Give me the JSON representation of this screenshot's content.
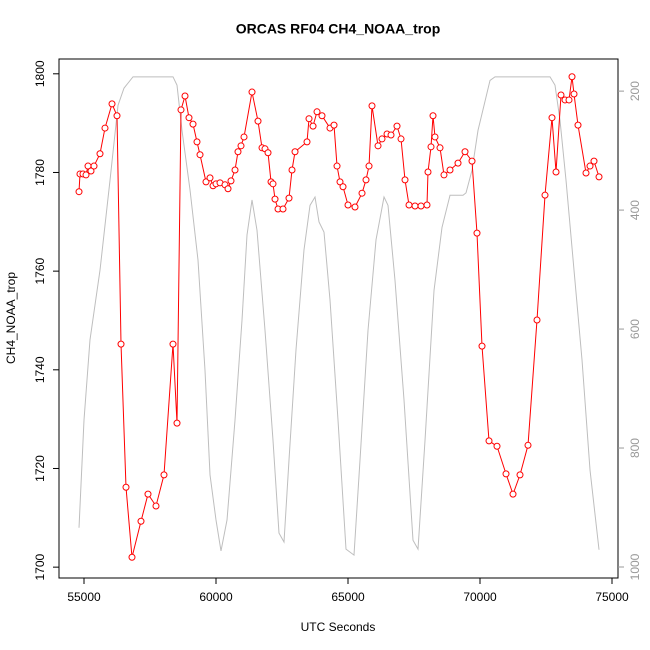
{
  "chart_data": {
    "type": "line",
    "title": "ORCAS RF04 CH4_NOAA_trop",
    "xlabel": "UTC Seconds",
    "ylabel": "CH4_NOAA_trop",
    "xlim": [
      54053,
      75227
    ],
    "xticks": [
      55000,
      60000,
      65000,
      70000,
      75000
    ],
    "ylim": [
      1697.8,
      1803.0
    ],
    "yticks": [
      1700,
      1720,
      1740,
      1760,
      1780,
      1800
    ],
    "y2lim": [
      1018.5,
      146
    ],
    "y2ticks": [
      200,
      400,
      600,
      800,
      1000
    ],
    "series": [
      {
        "color": "#ff0000",
        "markers": true,
        "x": [
          54811,
          54848,
          54962,
          55076,
          55152,
          55265,
          55379,
          55606,
          55795,
          56061,
          56250,
          56402,
          56591,
          56818,
          57159,
          57424,
          57727,
          58030,
          58371,
          58523,
          58674,
          58826,
          58977,
          59129,
          59280,
          59394,
          59621,
          59773,
          59887,
          60000,
          60152,
          60341,
          60455,
          60568,
          60720,
          60833,
          60947,
          61061,
          61364,
          61591,
          61743,
          61856,
          61970,
          62084,
          62159,
          62235,
          62349,
          62538,
          62765,
          62879,
          62993,
          63447,
          63523,
          63675,
          63826,
          64015,
          64318,
          64470,
          64584,
          64697,
          64811,
          65000,
          65265,
          65531,
          65682,
          65796,
          65909,
          66137,
          66288,
          66478,
          66629,
          66856,
          67008,
          67159,
          67311,
          67538,
          67765,
          67992,
          68030,
          68144,
          68220,
          68295,
          68485,
          68636,
          68864,
          69167,
          69432,
          69697,
          69886,
          70076,
          70341,
          70644,
          70985,
          71250,
          71515,
          71818,
          72159,
          72462,
          72727,
          72879,
          73068,
          73220,
          73371,
          73485,
          73561,
          73712,
          74015,
          74167,
          74318,
          74508
        ],
        "values": [
          1776.1,
          1779.7,
          1779.7,
          1779.5,
          1781.3,
          1780.3,
          1781.3,
          1783.8,
          1789.0,
          1793.9,
          1791.5,
          1745.2,
          1716.2,
          1702.0,
          1709.3,
          1714.8,
          1712.4,
          1718.7,
          1745.2,
          1729.2,
          1792.7,
          1795.5,
          1791.1,
          1789.8,
          1786.2,
          1783.6,
          1778.1,
          1778.9,
          1777.3,
          1777.7,
          1777.9,
          1777.5,
          1776.7,
          1778.3,
          1780.5,
          1784.2,
          1785.4,
          1787.2,
          1796.3,
          1790.4,
          1785.0,
          1784.8,
          1784.0,
          1778.1,
          1777.7,
          1774.6,
          1772.6,
          1772.6,
          1774.8,
          1780.5,
          1784.2,
          1786.2,
          1790.9,
          1789.4,
          1792.3,
          1791.5,
          1789.0,
          1789.6,
          1781.3,
          1778.1,
          1777.1,
          1773.4,
          1773.0,
          1775.8,
          1778.5,
          1781.3,
          1793.5,
          1785.4,
          1786.8,
          1787.8,
          1787.6,
          1789.4,
          1786.8,
          1778.5,
          1773.4,
          1773.2,
          1773.2,
          1773.4,
          1780.1,
          1785.2,
          1791.5,
          1787.2,
          1785.0,
          1779.5,
          1780.5,
          1781.9,
          1784.2,
          1782.3,
          1767.7,
          1744.8,
          1725.6,
          1724.5,
          1718.9,
          1714.8,
          1718.7,
          1724.7,
          1750.1,
          1775.4,
          1791.1,
          1780.1,
          1795.7,
          1794.7,
          1794.7,
          1799.4,
          1795.9,
          1789.6,
          1779.9,
          1781.3,
          1782.3,
          1779.1
        ]
      },
      {
        "color": "#bebebe",
        "axis": "y2",
        "markers": false,
        "x": [
          54811,
          55000,
          55227,
          55606,
          55985,
          56288,
          56515,
          56856,
          57121,
          58371,
          58523,
          58712,
          59015,
          59318,
          59583,
          59773,
          60000,
          60189,
          60417,
          60720,
          60985,
          61174,
          61364,
          61553,
          61856,
          62159,
          62386,
          62576,
          62765,
          63030,
          63333,
          63561,
          63750,
          63902,
          64091,
          64318,
          64621,
          64924,
          65227,
          65455,
          65758,
          66061,
          66364,
          66515,
          66780,
          67121,
          67462,
          67652,
          67917,
          68258,
          68561,
          68864,
          69356,
          69470,
          69697,
          69924,
          70152,
          70379,
          70568,
          71515,
          72652,
          72841,
          73030,
          73258,
          73561,
          73864,
          74167,
          74508
        ],
        "values": [
          934,
          753,
          618,
          501,
          350,
          224,
          195,
          176,
          176,
          176,
          190,
          266,
          366,
          484,
          669,
          845,
          921,
          973,
          921,
          753,
          585,
          442,
          383,
          434,
          602,
          787,
          943,
          958,
          820,
          635,
          467,
          392,
          378,
          420,
          437,
          551,
          753,
          970,
          980,
          820,
          602,
          450,
          378,
          392,
          518,
          719,
          955,
          970,
          787,
          535,
          429,
          375,
          375,
          371,
          333,
          266,
          224,
          182,
          176,
          176,
          176,
          190,
          249,
          350,
          501,
          652,
          837,
          971
        ]
      }
    ]
  }
}
